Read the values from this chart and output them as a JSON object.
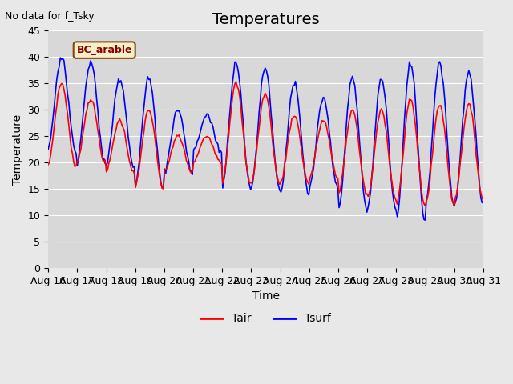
{
  "title": "Temperatures",
  "xlabel": "Time",
  "ylabel": "Temperature",
  "no_data_text": "No data for f_Tsky",
  "bc_label": "BC_arable",
  "ylim": [
    0,
    45
  ],
  "yticks": [
    0,
    5,
    10,
    15,
    20,
    25,
    30,
    35,
    40,
    45
  ],
  "xtick_labels": [
    "Aug 16",
    "Aug 17",
    "Aug 18",
    "Aug 19",
    "Aug 20",
    "Aug 21",
    "Aug 22",
    "Aug 23",
    "Aug 24",
    "Aug 25",
    "Aug 26",
    "Aug 27",
    "Aug 28",
    "Aug 29",
    "Aug 30",
    "Aug 31"
  ],
  "legend_entries": [
    "Tair",
    "Tsurf"
  ],
  "fig_bg_color": "#e8e8e8",
  "plot_bg_color": "#d8d8d8",
  "grid_color": "#ffffff",
  "title_fontsize": 14,
  "label_fontsize": 10,
  "tick_fontsize": 9,
  "n_days": 15,
  "tair_peaks": [
    35,
    32,
    28,
    30,
    25,
    25,
    35,
    33,
    29,
    28,
    30,
    30,
    32,
    31,
    31
  ],
  "tair_mins": [
    19,
    20,
    18,
    15,
    18,
    20,
    16,
    16,
    16,
    17,
    14,
    13,
    12,
    12,
    13
  ],
  "tsurf_peaks": [
    40,
    39,
    36,
    36,
    30,
    29,
    39,
    38,
    35,
    32,
    36,
    36,
    39,
    39,
    37
  ],
  "tsurf_mins": [
    22,
    20,
    19,
    15,
    18,
    22,
    15,
    15,
    14,
    15,
    11,
    11,
    9,
    12,
    12
  ],
  "tair_line_color": "red",
  "tsurf_line_color": "blue",
  "line_width": 1.2,
  "bc_box_facecolor": "#f5f0c8",
  "bc_box_edgecolor": "#8b4513",
  "bc_text_color": "#8b0000"
}
